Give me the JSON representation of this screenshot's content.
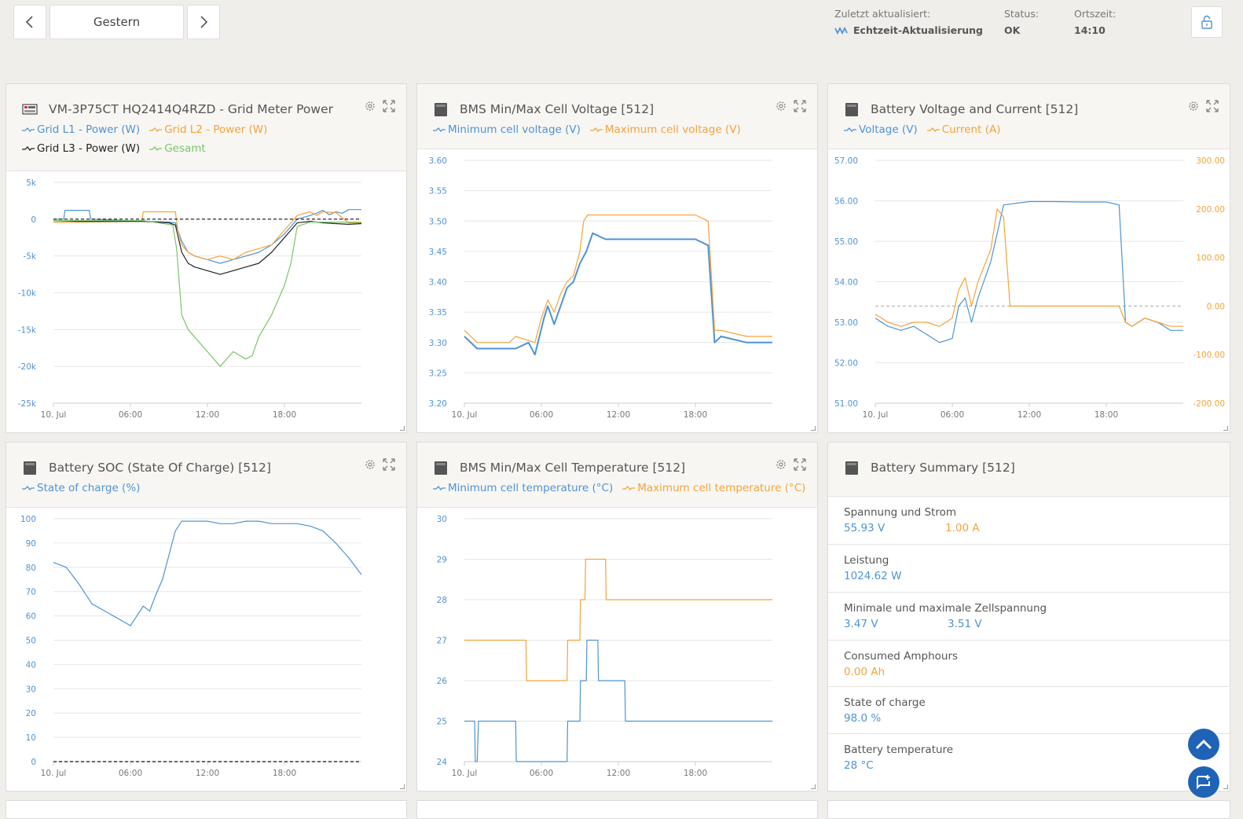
{
  "nav": {
    "date_label": "Gestern"
  },
  "status": {
    "updated_label": "Zuletzt aktualisiert:",
    "updated_value": "Echtzeit-Aktualisierung",
    "status_label": "Status:",
    "status_value": "OK",
    "time_label": "Ortszeit:",
    "time_value": "14:10"
  },
  "widgets": {
    "grid": {
      "title": "VM-3P75CT HQ2414Q4RZD - Grid Meter Power",
      "legend": [
        "Grid L1 - Power (W)",
        "Grid L2 - Power (W)",
        "Grid L3 - Power (W)",
        "Gesamt"
      ]
    },
    "cellv": {
      "title": "BMS Min/Max Cell Voltage [512]",
      "legend": [
        "Minimum cell voltage (V)",
        "Maximum cell voltage (V)"
      ]
    },
    "battvi": {
      "title": "Battery Voltage and Current [512]",
      "legend": [
        "Voltage (V)",
        "Current (A)"
      ]
    },
    "soc": {
      "title": "Battery SOC (State Of Charge) [512]",
      "legend": [
        "State of charge (%)"
      ]
    },
    "temp": {
      "title": "BMS Min/Max Cell Temperature [512]",
      "legend": [
        "Minimum cell temperature (°C)",
        "Maximum cell temperature (°C)"
      ]
    },
    "summary": {
      "title": "Battery Summary [512]",
      "rows": [
        {
          "label": "Spannung und Strom",
          "v1": "55.93 V",
          "v2": "1.00 A"
        },
        {
          "label": "Leistung",
          "v1": "1024.62 W"
        },
        {
          "label": "Minimale und maximale Zellspannung",
          "v1": "3.47 V",
          "v2": "3.51 V"
        },
        {
          "label": "Consumed Amphours",
          "v1": "0.00 Ah"
        },
        {
          "label": "State of charge",
          "v1": "98.0 %"
        },
        {
          "label": "Battery temperature",
          "v1": "28 °C"
        }
      ]
    }
  },
  "colors": {
    "blue": "#4f93d3",
    "orange": "#f5a33a",
    "black": "#222222",
    "green": "#7cc36b",
    "accent": "#1f63b7"
  },
  "chart_data": [
    {
      "id": "grid",
      "type": "line",
      "xticks": [
        "10. Jul",
        "06:00",
        "12:00",
        "18:00"
      ],
      "xlim": [
        0,
        24
      ],
      "ylim": [
        -25000,
        5000
      ],
      "yticks": [
        5000,
        0,
        -5000,
        -10000,
        -15000,
        -20000,
        -25000
      ],
      "ytick_labels": [
        "5k",
        "0",
        "-5k",
        "-10k",
        "-15k",
        "-20k",
        "-25k"
      ],
      "reference_line": 0,
      "series": [
        {
          "name": "Grid L1 - Power (W)",
          "color": "#4f93d3",
          "x": [
            0,
            0.8,
            0.9,
            2.8,
            2.9,
            7,
            9,
            9.5,
            10,
            10.5,
            11,
            12,
            13,
            14,
            15,
            16,
            17,
            18,
            18.5,
            19,
            20,
            20.5,
            21,
            21.5,
            22,
            22.5,
            23,
            24
          ],
          "y": [
            0,
            0,
            1200,
            1200,
            0,
            -300,
            -400,
            -500,
            -3000,
            -4500,
            -5000,
            -5500,
            -6000,
            -5500,
            -5000,
            -4500,
            -3500,
            -2000,
            -1000,
            0,
            500,
            800,
            1200,
            600,
            1000,
            800,
            1300,
            1300
          ]
        },
        {
          "name": "Grid L2 - Power (W)",
          "color": "#f5a33a",
          "x": [
            0,
            2,
            6.9,
            7,
            9.5,
            9.7,
            10,
            10.5,
            11,
            12,
            13,
            14,
            15,
            16,
            17,
            18,
            18.5,
            19,
            20,
            20.5,
            21,
            22,
            23,
            24
          ],
          "y": [
            -400,
            -400,
            -300,
            1000,
            1000,
            -1500,
            -3500,
            -4500,
            -5000,
            -5500,
            -5000,
            -5500,
            -4500,
            -4000,
            -3500,
            -1500,
            -500,
            500,
            1000,
            500,
            1000,
            900,
            -500,
            -500
          ]
        },
        {
          "name": "Grid L3 - Power (W)",
          "color": "#222222",
          "x": [
            0,
            2,
            7,
            9,
            9.5,
            10,
            10.5,
            11,
            12,
            13,
            14,
            15,
            16,
            17,
            18,
            18.5,
            19,
            20,
            21,
            22,
            23,
            24
          ],
          "y": [
            -200,
            -300,
            -300,
            -500,
            -800,
            -4500,
            -6000,
            -6500,
            -7000,
            -7500,
            -7000,
            -6500,
            -6000,
            -4500,
            -2500,
            -1500,
            -500,
            -300,
            -500,
            -600,
            -700,
            -600
          ]
        },
        {
          "name": "Gesamt",
          "color": "#7cc36b",
          "x": [
            0,
            7,
            9.3,
            9.6,
            10,
            10.5,
            11,
            12,
            13,
            14,
            15,
            15.5,
            16,
            17,
            18,
            18.5,
            19,
            20,
            21,
            24
          ],
          "y": [
            -200,
            -200,
            -800,
            -4000,
            -13000,
            -15000,
            -16000,
            -18000,
            -20000,
            -18000,
            -19000,
            -18500,
            -16000,
            -13000,
            -9000,
            -6000,
            -1000,
            -400,
            -400,
            -400
          ]
        }
      ]
    },
    {
      "id": "cellv",
      "type": "line",
      "xticks": [
        "10. Jul",
        "06:00",
        "12:00",
        "18:00"
      ],
      "xlim": [
        0,
        24
      ],
      "ylim": [
        3.2,
        3.6
      ],
      "yticks": [
        3.2,
        3.25,
        3.3,
        3.35,
        3.4,
        3.45,
        3.5,
        3.55,
        3.6
      ],
      "ytick_labels": [
        "3.20",
        "3.25",
        "3.30",
        "3.35",
        "3.40",
        "3.45",
        "3.50",
        "3.55",
        "3.60"
      ],
      "series": [
        {
          "name": "Minimum cell voltage (V)",
          "color": "#4f93d3",
          "x": [
            0,
            1,
            4,
            5,
            5.5,
            6.2,
            6.5,
            7,
            7.5,
            8,
            8.5,
            9,
            9.5,
            10,
            11,
            12,
            13,
            18,
            19,
            19.5,
            20,
            22,
            24
          ],
          "y": [
            3.31,
            3.29,
            3.29,
            3.3,
            3.28,
            3.34,
            3.36,
            3.33,
            3.36,
            3.39,
            3.4,
            3.43,
            3.45,
            3.48,
            3.47,
            3.47,
            3.47,
            3.47,
            3.46,
            3.3,
            3.31,
            3.3,
            3.3
          ]
        },
        {
          "name": "Maximum cell voltage (V)",
          "color": "#f5a33a",
          "x": [
            0,
            1,
            3.5,
            4,
            5.5,
            6,
            6.5,
            7,
            7.5,
            8,
            8.5,
            9,
            9.3,
            9.6,
            10,
            12,
            14,
            16,
            18,
            19,
            19.5,
            20,
            22,
            24
          ],
          "y": [
            3.32,
            3.3,
            3.3,
            3.31,
            3.3,
            3.34,
            3.37,
            3.35,
            3.38,
            3.4,
            3.41,
            3.45,
            3.5,
            3.51,
            3.51,
            3.51,
            3.51,
            3.51,
            3.51,
            3.5,
            3.32,
            3.32,
            3.31,
            3.31
          ]
        }
      ]
    },
    {
      "id": "battvi",
      "type": "line",
      "xticks": [
        "10. Jul",
        "06:00",
        "12:00",
        "18:00"
      ],
      "xlim": [
        0,
        24
      ],
      "ylim": [
        51,
        57
      ],
      "yticks": [
        51,
        52,
        53,
        54,
        55,
        56,
        57
      ],
      "ytick_labels": [
        "51.00",
        "52.00",
        "53.00",
        "54.00",
        "55.00",
        "56.00",
        "57.00"
      ],
      "y2lim": [
        -200,
        300
      ],
      "y2ticks": [
        -200,
        -100,
        0,
        100,
        200,
        300
      ],
      "y2tick_labels": [
        "-200.00",
        "-100.00",
        "0.00",
        "100.00",
        "200.00",
        "300.00"
      ],
      "reference_line2": 0,
      "series": [
        {
          "name": "Voltage (V)",
          "axis": "left",
          "color": "#4f93d3",
          "x": [
            0,
            1,
            2,
            3,
            4,
            5,
            6,
            6.5,
            7,
            7.5,
            8,
            9,
            9.5,
            10,
            12,
            14,
            16,
            18,
            19,
            19.5,
            20,
            21,
            22,
            23,
            24
          ],
          "y": [
            53.1,
            52.9,
            52.8,
            52.9,
            52.7,
            52.5,
            52.6,
            53.4,
            53.6,
            53,
            53.6,
            54.5,
            55.2,
            55.9,
            55.98,
            55.98,
            55.97,
            55.97,
            55.9,
            53,
            52.9,
            53.1,
            53,
            52.8,
            52.8
          ]
        },
        {
          "name": "Current (A)",
          "axis": "left",
          "color": "#f5a33a",
          "x": [
            0,
            1,
            2,
            3,
            4,
            5,
            6,
            6.5,
            7,
            7.5,
            8,
            9,
            9.5,
            10,
            10.5,
            12,
            14,
            16,
            18,
            19,
            19.5,
            20,
            21,
            22,
            23,
            24
          ],
          "y": [
            53.2,
            53,
            52.9,
            53,
            53,
            52.9,
            53.1,
            53.8,
            54.1,
            53.4,
            54,
            54.8,
            55.8,
            55.6,
            53.4,
            53.4,
            53.4,
            53.4,
            53.4,
            53.4,
            53,
            52.9,
            53.1,
            53,
            52.9,
            52.9
          ]
        }
      ]
    },
    {
      "id": "soc",
      "type": "line",
      "xticks": [
        "10. Jul",
        "06:00",
        "12:00",
        "18:00"
      ],
      "xlim": [
        0,
        24
      ],
      "ylim": [
        0,
        100
      ],
      "yticks": [
        0,
        10,
        20,
        30,
        40,
        50,
        60,
        70,
        80,
        90,
        100
      ],
      "ytick_labels": [
        "0",
        "10",
        "20",
        "30",
        "40",
        "50",
        "60",
        "70",
        "80",
        "90",
        "100"
      ],
      "reference_line": 0,
      "series": [
        {
          "name": "State of charge (%)",
          "color": "#4f93d3",
          "x": [
            0,
            1,
            2,
            3,
            4,
            5,
            6,
            6.5,
            7,
            7.5,
            8,
            8.5,
            9,
            9.5,
            10,
            11,
            12,
            13,
            14,
            15,
            16,
            17,
            18,
            19,
            20,
            21,
            22,
            23,
            24
          ],
          "y": [
            82,
            80,
            73,
            65,
            62,
            59,
            56,
            60,
            64,
            62,
            69,
            75,
            85,
            95,
            99,
            99,
            99,
            98,
            98,
            99,
            99,
            98,
            98,
            98,
            97,
            95,
            90,
            84,
            77
          ]
        }
      ]
    },
    {
      "id": "temp",
      "type": "line",
      "xticks": [
        "10. Jul",
        "06:00",
        "12:00",
        "18:00"
      ],
      "xlim": [
        0,
        24
      ],
      "ylim": [
        24,
        30
      ],
      "yticks": [
        24,
        25,
        26,
        27,
        28,
        29,
        30
      ],
      "ytick_labels": [
        "24",
        "25",
        "26",
        "27",
        "28",
        "29",
        "30"
      ],
      "series": [
        {
          "name": "Minimum cell temperature (°C)",
          "color": "#4f93d3",
          "x": [
            0,
            0.8,
            0.85,
            1,
            1.1,
            4,
            4.05,
            8,
            8.05,
            9,
            9.05,
            9.5,
            9.55,
            10.4,
            10.45,
            12.5,
            12.55,
            24
          ],
          "y": [
            25,
            25,
            24,
            24,
            25,
            25,
            24,
            24,
            25,
            25,
            26,
            26,
            27,
            27,
            26,
            26,
            25,
            25
          ]
        },
        {
          "name": "Maximum cell temperature (°C)",
          "color": "#f5a33a",
          "x": [
            0,
            4.8,
            4.85,
            8,
            8.05,
            9,
            9.05,
            9.4,
            9.45,
            11,
            11.05,
            24
          ],
          "y": [
            27,
            27,
            26,
            26,
            27,
            27,
            28,
            28,
            29,
            29,
            28,
            28
          ]
        }
      ]
    }
  ]
}
